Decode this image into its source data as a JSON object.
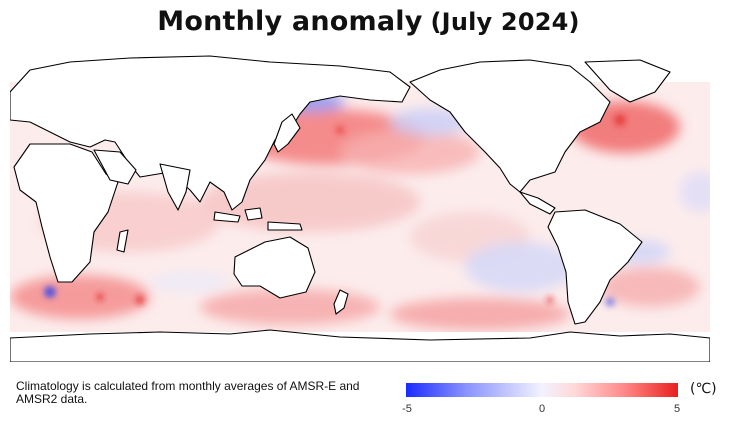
{
  "title": {
    "main": "Monthly anomaly",
    "period": "(July 2024)"
  },
  "note": "Climatology is calculated from monthly averages of AMSR-E and AMSR2 data.",
  "colorbar": {
    "min_label": "-5",
    "mid_label": "0",
    "max_label": "5",
    "unit": "(℃)",
    "min_color": "#1a2bff",
    "mid_color": "#ffffff",
    "max_color": "#e8201e"
  },
  "map": {
    "projection": "equirectangular, Pacific-centred",
    "land_color": "#ffffff",
    "coast_color": "#000000",
    "warm_regions": [
      "North Pacific",
      "North Atlantic",
      "Southern Ocean",
      "Red Sea"
    ],
    "cool_regions": [
      "Sea of Okhotsk",
      "Central North Pacific",
      "Southeast Pacific"
    ]
  }
}
